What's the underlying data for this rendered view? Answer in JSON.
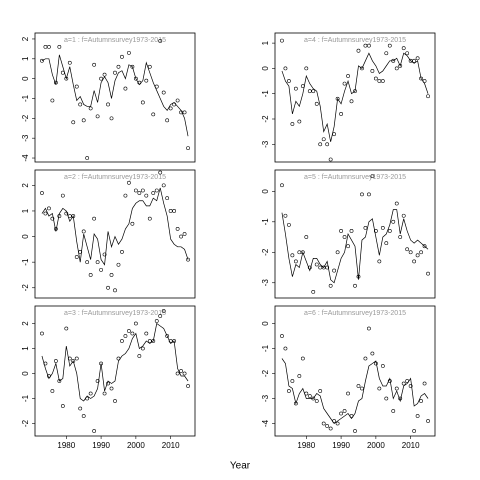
{
  "xlabel": "Year",
  "chart_data": [
    {
      "type": "scatter",
      "title": "a=1 : f=Autumnsurvey1973-2015",
      "x": [
        1973,
        1974,
        1975,
        1976,
        1977,
        1978,
        1979,
        1980,
        1981,
        1982,
        1983,
        1984,
        1985,
        1986,
        1987,
        1988,
        1989,
        1990,
        1991,
        1992,
        1993,
        1994,
        1995,
        1996,
        1997,
        1998,
        1999,
        2000,
        2001,
        2002,
        2003,
        2004,
        2005,
        2006,
        2007,
        2008,
        2009,
        2010,
        2011,
        2012,
        2013,
        2014,
        2015
      ],
      "series": [
        {
          "style": "points",
          "values": [
            0.9,
            1.6,
            1.6,
            -1.1,
            -0.2,
            1.6,
            0.3,
            0.0,
            0.8,
            -2.2,
            -0.4,
            -1.3,
            -2.1,
            -4.0,
            -1.5,
            0.7,
            -1.9,
            0.0,
            0.2,
            -1.3,
            -2.0,
            0.3,
            0.6,
            1.1,
            -0.5,
            1.3,
            0.6,
            0.0,
            -0.2,
            -1.2,
            -0.1,
            0.6,
            -1.8,
            -0.4,
            1.9,
            -0.7,
            -2.1,
            -1.5,
            -1.3,
            -1.1,
            -1.7,
            -1.7,
            -3.5
          ]
        },
        {
          "style": "line",
          "values": [
            0.9,
            1.0,
            1.0,
            0.2,
            -0.3,
            1.2,
            0.6,
            0.0,
            0.6,
            -0.3,
            -1.1,
            -0.9,
            -1.3,
            -1.4,
            -1.4,
            -0.6,
            -1.2,
            -0.2,
            0.1,
            -0.2,
            -1.0,
            -0.1,
            0.3,
            0.4,
            0.0,
            0.7,
            0.6,
            0.0,
            -0.3,
            -0.1,
            0.8,
            0.3,
            -0.2,
            -0.6,
            -1.0,
            -1.4,
            -1.6,
            -1.3,
            -1.2,
            -1.4,
            -1.6,
            -2.0,
            -2.9
          ]
        }
      ],
      "xlim": [
        1971,
        2017
      ],
      "ylim": [
        -4.2,
        2.3
      ],
      "yticks": [
        -4,
        -3,
        -2,
        -1,
        0,
        1,
        2
      ]
    },
    {
      "type": "scatter",
      "title": "a=2 : f=Autumnsurvey1973-2015",
      "x": [
        1973,
        1974,
        1975,
        1976,
        1977,
        1978,
        1979,
        1980,
        1981,
        1982,
        1983,
        1984,
        1985,
        1986,
        1987,
        1988,
        1989,
        1990,
        1991,
        1992,
        1993,
        1994,
        1995,
        1996,
        1997,
        1998,
        1999,
        2000,
        2001,
        2002,
        2003,
        2004,
        2005,
        2006,
        2007,
        2008,
        2009,
        2010,
        2011,
        2012,
        2013,
        2014,
        2015
      ],
      "series": [
        {
          "style": "points",
          "values": [
            1.7,
            0.9,
            1.1,
            0.7,
            0.3,
            0.8,
            1.6,
            0.9,
            0.8,
            0.8,
            -0.8,
            -0.6,
            0.2,
            -1.0,
            -1.5,
            0.7,
            -1.0,
            -1.3,
            -0.7,
            -2.0,
            -1.5,
            -2.1,
            -1.1,
            -0.6,
            1.6,
            2.1,
            0.5,
            1.8,
            1.7,
            1.8,
            1.6,
            0.7,
            1.7,
            1.8,
            2.5,
            2.0,
            1.5,
            1.0,
            1.0,
            0.3,
            0.0,
            0.1,
            -0.9
          ]
        },
        {
          "style": "line",
          "values": [
            0.9,
            1.1,
            0.8,
            0.9,
            0.2,
            0.9,
            1.1,
            1.0,
            0.6,
            0.8,
            -0.2,
            -1.0,
            0.1,
            -0.4,
            -0.9,
            0.1,
            -0.1,
            -0.9,
            -1.1,
            0.2,
            -0.4,
            0.0,
            -0.3,
            -0.1,
            0.3,
            0.5,
            1.1,
            1.3,
            1.4,
            1.4,
            1.2,
            1.2,
            1.5,
            1.4,
            1.9,
            1.3,
            0.8,
            -0.1,
            -0.3,
            -0.4,
            -0.4,
            -0.5,
            -0.9
          ]
        }
      ],
      "xlim": [
        1971,
        2017
      ],
      "ylim": [
        -2.4,
        2.6
      ],
      "yticks": [
        -2,
        -1,
        0,
        1,
        2
      ]
    },
    {
      "type": "scatter",
      "title": "a=3 : f=Autumnsurvey1973-2015",
      "x": [
        1973,
        1974,
        1975,
        1976,
        1977,
        1978,
        1979,
        1980,
        1981,
        1982,
        1983,
        1984,
        1985,
        1986,
        1987,
        1988,
        1989,
        1990,
        1991,
        1992,
        1993,
        1994,
        1995,
        1996,
        1997,
        1998,
        1999,
        2000,
        2001,
        2002,
        2003,
        2004,
        2005,
        2006,
        2007,
        2008,
        2009,
        2010,
        2011,
        2012,
        2013,
        2014,
        2015
      ],
      "series": [
        {
          "style": "points",
          "values": [
            1.6,
            0.4,
            -0.1,
            -0.7,
            0.5,
            -0.3,
            -1.3,
            1.8,
            0.6,
            0.5,
            0.6,
            -1.4,
            -1.7,
            -1.0,
            -0.8,
            -2.3,
            -0.3,
            0.4,
            -0.8,
            -0.4,
            -0.6,
            -1.1,
            0.6,
            1.3,
            1.5,
            1.7,
            1.6,
            2.0,
            0.7,
            1.0,
            1.6,
            1.3,
            1.3,
            2.1,
            2.3,
            2.5,
            1.5,
            1.3,
            1.3,
            0.0,
            0.1,
            0.0,
            -0.5
          ]
        },
        {
          "style": "line",
          "values": [
            0.7,
            0.2,
            -0.2,
            0.0,
            0.4,
            -0.3,
            -0.2,
            1.1,
            0.3,
            0.5,
            0.0,
            -1.0,
            -1.1,
            -0.9,
            -1.0,
            -0.9,
            -0.6,
            0.4,
            -0.7,
            -0.3,
            -0.4,
            -0.3,
            0.5,
            0.7,
            0.8,
            1.0,
            1.4,
            1.6,
            1.0,
            1.1,
            1.3,
            1.2,
            1.3,
            2.0,
            1.9,
            1.8,
            1.5,
            1.2,
            1.3,
            0.2,
            -0.1,
            -0.1,
            -0.3
          ]
        }
      ],
      "xlim": [
        1971,
        2017
      ],
      "xticks": [
        1980,
        1990,
        2000,
        2010
      ],
      "ylim": [
        -2.5,
        2.7
      ],
      "yticks": [
        -2,
        -1,
        0,
        1,
        2
      ]
    },
    {
      "type": "scatter",
      "title": "a=4 : f=Autumnsurvey1973-2015",
      "x": [
        1973,
        1974,
        1975,
        1976,
        1977,
        1978,
        1979,
        1980,
        1981,
        1982,
        1983,
        1984,
        1985,
        1986,
        1987,
        1988,
        1989,
        1990,
        1991,
        1992,
        1993,
        1994,
        1995,
        1996,
        1997,
        1998,
        1999,
        2000,
        2001,
        2002,
        2003,
        2004,
        2005,
        2006,
        2007,
        2008,
        2009,
        2010,
        2011,
        2012,
        2013,
        2014,
        2015
      ],
      "series": [
        {
          "style": "points",
          "values": [
            1.1,
            0.0,
            -0.5,
            -2.2,
            -0.8,
            -2.1,
            -0.7,
            0.0,
            -0.9,
            -0.9,
            -1.4,
            -3.0,
            -2.8,
            -3.0,
            -3.6,
            -2.6,
            -1.2,
            -1.8,
            -0.6,
            -0.3,
            -1.3,
            -0.9,
            0.7,
            0.0,
            0.9,
            0.9,
            -0.1,
            -0.4,
            -0.5,
            -0.5,
            0.6,
            0.9,
            0.3,
            0.0,
            0.1,
            0.8,
            0.6,
            0.3,
            0.3,
            0.4,
            -0.4,
            -0.5,
            -1.1
          ]
        },
        {
          "style": "line",
          "values": [
            -0.1,
            -0.5,
            -0.7,
            -1.8,
            -1.3,
            -1.5,
            -1.0,
            -0.3,
            -0.6,
            -0.8,
            -0.9,
            -1.5,
            -2.5,
            -2.2,
            -2.9,
            -2.3,
            -1.2,
            -1.4,
            -0.9,
            -0.5,
            -1.0,
            -0.9,
            0.1,
            0.0,
            0.3,
            0.6,
            0.3,
            0.1,
            -0.2,
            -0.1,
            0.1,
            0.3,
            0.3,
            0.4,
            0.1,
            0.6,
            0.5,
            0.3,
            0.2,
            0.3,
            -0.4,
            -0.6,
            -1.0
          ]
        }
      ],
      "xlim": [
        1971,
        2017
      ],
      "ylim": [
        -3.7,
        1.4
      ],
      "yticks": [
        -3,
        -2,
        -1,
        0,
        1
      ]
    },
    {
      "type": "scatter",
      "title": "a=5 : f=Autumnsurvey1973-2015",
      "x": [
        1973,
        1974,
        1975,
        1976,
        1977,
        1978,
        1979,
        1980,
        1981,
        1982,
        1983,
        1984,
        1985,
        1986,
        1987,
        1988,
        1989,
        1990,
        1991,
        1992,
        1993,
        1994,
        1995,
        1996,
        1997,
        1998,
        1999,
        2000,
        2001,
        2002,
        2003,
        2004,
        2005,
        2006,
        2007,
        2008,
        2009,
        2010,
        2011,
        2012,
        2013,
        2014,
        2015
      ],
      "series": [
        {
          "style": "points",
          "values": [
            0.2,
            -0.8,
            -1.1,
            -2.1,
            -2.3,
            -2.0,
            -2.0,
            -1.5,
            -2.5,
            -3.3,
            -2.4,
            -2.5,
            -2.5,
            -2.5,
            -3.1,
            -2.6,
            -2.0,
            -1.3,
            -1.5,
            -1.8,
            -1.3,
            -3.1,
            -2.8,
            -0.1,
            -1.2,
            -0.1,
            0.5,
            -1.3,
            -2.3,
            -1.2,
            -1.7,
            -1.3,
            -1.0,
            -0.4,
            -1.5,
            -0.8,
            -1.9,
            -2.0,
            -2.3,
            -2.1,
            -2.0,
            -1.8,
            -2.7
          ]
        },
        {
          "style": "line",
          "values": [
            -0.7,
            -1.4,
            -2.2,
            -2.8,
            -2.4,
            -2.5,
            -2.0,
            -2.3,
            -2.6,
            -2.2,
            -2.2,
            -2.4,
            -2.5,
            -2.3,
            -2.9,
            -3.0,
            -2.6,
            -2.2,
            -2.0,
            -1.4,
            -1.6,
            -1.8,
            -2.9,
            -1.6,
            -1.5,
            -1.0,
            -0.9,
            -1.5,
            -2.1,
            -1.5,
            -1.4,
            -1.1,
            -0.6,
            -0.6,
            -1.4,
            -0.9,
            -1.3,
            -1.6,
            -1.7,
            -1.6,
            -1.7,
            -1.8,
            -1.9
          ]
        }
      ],
      "xlim": [
        1971,
        2017
      ],
      "ylim": [
        -3.5,
        0.7
      ],
      "yticks": [
        -3,
        -2,
        -1,
        0
      ]
    },
    {
      "type": "scatter",
      "title": "a=6 : f=Autumnsurvey1973-2015",
      "x": [
        1973,
        1974,
        1975,
        1976,
        1977,
        1978,
        1979,
        1980,
        1981,
        1982,
        1983,
        1984,
        1985,
        1986,
        1987,
        1988,
        1989,
        1990,
        1991,
        1992,
        1993,
        1994,
        1995,
        1996,
        1997,
        1998,
        1999,
        2000,
        2001,
        2002,
        2003,
        2004,
        2005,
        2006,
        2007,
        2008,
        2009,
        2010,
        2011,
        2012,
        2013,
        2014,
        2015
      ],
      "series": [
        {
          "style": "points",
          "values": [
            -0.5,
            -1.0,
            -2.7,
            -2.3,
            -3.2,
            -2.1,
            -1.4,
            -2.8,
            -2.9,
            -3.0,
            -3.1,
            -2.7,
            -4.0,
            -4.1,
            -4.2,
            -3.9,
            -4.0,
            -3.6,
            -3.5,
            -2.8,
            -3.7,
            -4.3,
            -2.5,
            -2.6,
            -1.4,
            -0.2,
            -1.2,
            -1.6,
            -2.6,
            -1.7,
            -3.0,
            -2.3,
            -3.5,
            -2.6,
            -3.0,
            -2.4,
            -2.3,
            -2.5,
            -4.3,
            -3.7,
            -3.1,
            -2.4,
            -3.9
          ]
        },
        {
          "style": "line",
          "values": [
            -1.4,
            -1.6,
            -2.5,
            -2.6,
            -3.2,
            -2.8,
            -2.6,
            -3.0,
            -3.0,
            -3.0,
            -2.8,
            -2.9,
            -3.4,
            -3.6,
            -3.8,
            -4.0,
            -3.9,
            -3.8,
            -3.7,
            -3.6,
            -3.8,
            -3.6,
            -3.1,
            -3.0,
            -2.3,
            -1.7,
            -1.6,
            -1.5,
            -2.2,
            -2.5,
            -2.5,
            -2.2,
            -3.0,
            -2.7,
            -3.1,
            -2.5,
            -2.4,
            -2.2,
            -3.3,
            -3.2,
            -2.9,
            -2.8,
            -3.0
          ]
        }
      ],
      "xlim": [
        1971,
        2017
      ],
      "xticks": [
        1980,
        1990,
        2000,
        2010
      ],
      "ylim": [
        -4.5,
        0.7
      ],
      "yticks": [
        -4,
        -3,
        -2,
        -1,
        0
      ]
    }
  ]
}
